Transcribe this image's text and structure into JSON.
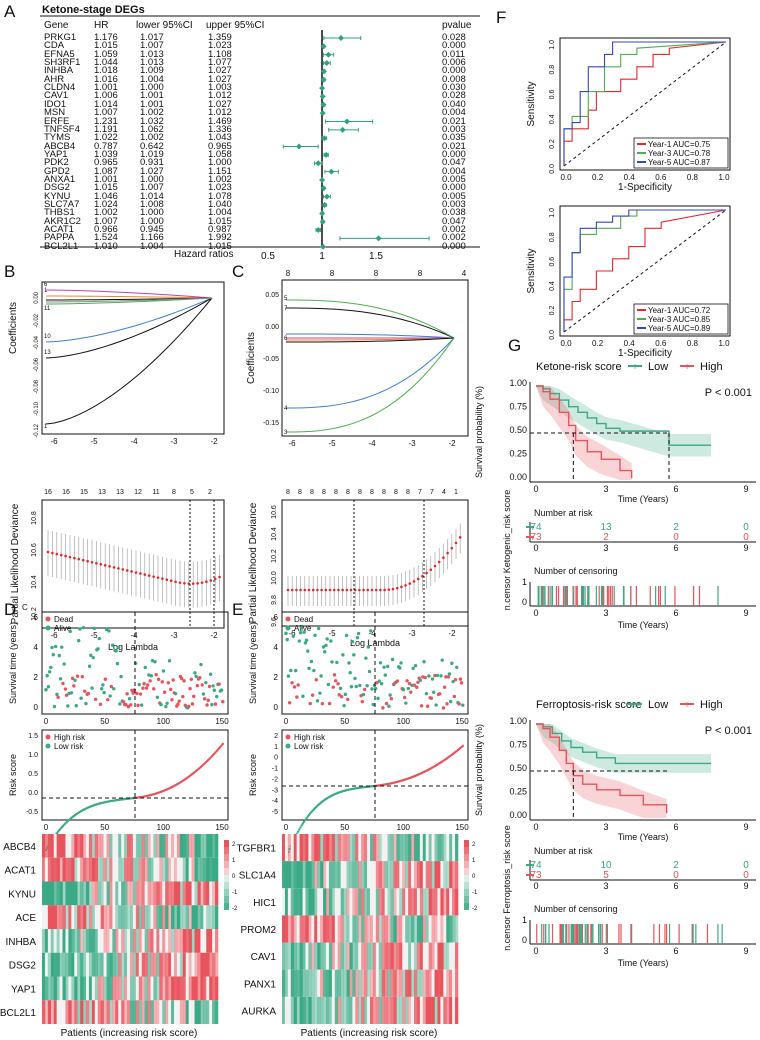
{
  "panels": {
    "A": "A",
    "B": "B",
    "C": "C",
    "D": "D",
    "E": "E",
    "F": "F",
    "G": "G"
  },
  "forest": {
    "title": "Ketone-stage DEGs",
    "headers": {
      "gene": "Gene",
      "hr": "HR",
      "lower": "lower 95%CI",
      "upper": "upper 95%CI",
      "pvalue": "pvalue"
    },
    "axis_label": "Hazard ratios",
    "ticks": [
      "0.5",
      "1",
      "1.5"
    ],
    "rows": [
      {
        "gene": "PRKG1",
        "hr": "1.176",
        "lower": "1.017",
        "upper": "1.359",
        "p": "0.028"
      },
      {
        "gene": "CDA",
        "hr": "1.015",
        "lower": "1.007",
        "upper": "1.023",
        "p": "0.000"
      },
      {
        "gene": "EFNA5",
        "hr": "1.059",
        "lower": "1.013",
        "upper": "1.108",
        "p": "0.011"
      },
      {
        "gene": "SH3RF1",
        "hr": "1.044",
        "lower": "1.013",
        "upper": "1.077",
        "p": "0.006"
      },
      {
        "gene": "INHBA",
        "hr": "1.018",
        "lower": "1.009",
        "upper": "1.027",
        "p": "0.000"
      },
      {
        "gene": "AHR",
        "hr": "1.016",
        "lower": "1.004",
        "upper": "1.027",
        "p": "0.008"
      },
      {
        "gene": "CLDN4",
        "hr": "1.001",
        "lower": "1.000",
        "upper": "1.003",
        "p": "0.030"
      },
      {
        "gene": "CAV1",
        "hr": "1.006",
        "lower": "1.001",
        "upper": "1.012",
        "p": "0.028"
      },
      {
        "gene": "IDO1",
        "hr": "1.014",
        "lower": "1.001",
        "upper": "1.027",
        "p": "0.040"
      },
      {
        "gene": "MSN",
        "hr": "1.007",
        "lower": "1.002",
        "upper": "1.012",
        "p": "0.004"
      },
      {
        "gene": "ERFE",
        "hr": "1.231",
        "lower": "1.032",
        "upper": "1.469",
        "p": "0.021"
      },
      {
        "gene": "TNFSF4",
        "hr": "1.191",
        "lower": "1.062",
        "upper": "1.336",
        "p": "0.003"
      },
      {
        "gene": "TYMS",
        "hr": "1.022",
        "lower": "1.002",
        "upper": "1.043",
        "p": "0.035"
      },
      {
        "gene": "ABCB4",
        "hr": "0.787",
        "lower": "0.642",
        "upper": "0.965",
        "p": "0.021"
      },
      {
        "gene": "YAP1",
        "hr": "1.039",
        "lower": "1.019",
        "upper": "1.058",
        "p": "0.000"
      },
      {
        "gene": "PDK2",
        "hr": "0.965",
        "lower": "0.931",
        "upper": "1.000",
        "p": "0.047"
      },
      {
        "gene": "GPD2",
        "hr": "1.087",
        "lower": "1.027",
        "upper": "1.151",
        "p": "0.004"
      },
      {
        "gene": "ANXA1",
        "hr": "1.001",
        "lower": "1.000",
        "upper": "1.002",
        "p": "0.005"
      },
      {
        "gene": "DSG2",
        "hr": "1.015",
        "lower": "1.007",
        "upper": "1.023",
        "p": "0.000"
      },
      {
        "gene": "KYNU",
        "hr": "1.046",
        "lower": "1.014",
        "upper": "1.078",
        "p": "0.005"
      },
      {
        "gene": "SLC7A7",
        "hr": "1.024",
        "lower": "1.008",
        "upper": "1.040",
        "p": "0.003"
      },
      {
        "gene": "THBS1",
        "hr": "1.002",
        "lower": "1.000",
        "upper": "1.004",
        "p": "0.038"
      },
      {
        "gene": "AKR1C2",
        "hr": "1.007",
        "lower": "1.000",
        "upper": "1.015",
        "p": "0.047"
      },
      {
        "gene": "ACAT1",
        "hr": "0.966",
        "lower": "0.945",
        "upper": "0.987",
        "p": "0.002"
      },
      {
        "gene": "PAPPA",
        "hr": "1.524",
        "lower": "1.166",
        "upper": "1.992",
        "p": "0.002"
      },
      {
        "gene": "BCL2L1",
        "hr": "1.010",
        "lower": "1.004",
        "upper": "1.015",
        "p": "0.000"
      }
    ]
  },
  "lasso": {
    "coef_label": "Coefficients",
    "pld_label": "Partial Likelihood Deviance",
    "loglambda_label": "Log Lambda",
    "B_coef_yticks": [
      "-0.12",
      "-0.10",
      "-0.08",
      "-0.06",
      "-0.04",
      "-0.02",
      "0.00"
    ],
    "B_pld_yticks": [
      "10.2",
      "10.4",
      "10.6",
      "10.8"
    ],
    "B_xticks": [
      "-6",
      "-5",
      "-4",
      "-3",
      "-2"
    ],
    "B_top_counts": [
      "16",
      "16",
      "15",
      "13",
      "13",
      "12",
      "11",
      "8",
      "5",
      "2"
    ],
    "B_coef_line_labels": [
      "6",
      "1",
      "11",
      "10",
      "13",
      "1"
    ],
    "C_coef_yticks": [
      "-0.15",
      "-0.10",
      "-0.05",
      "0.00",
      "0.05"
    ],
    "C_pld_yticks": [
      "9.6",
      "9.8",
      "10.0",
      "10.2",
      "10.4",
      "10.6"
    ],
    "C_xticks": [
      "-6",
      "-5",
      "-4",
      "-3",
      "-2"
    ],
    "C_top_counts_coef": [
      "8",
      "8",
      "8",
      "8",
      "4"
    ],
    "C_top_counts_pld": [
      "8",
      "8",
      "8",
      "8",
      "8",
      "8",
      "8",
      "8",
      "8",
      "8",
      "8",
      "7",
      "7",
      "4",
      "1"
    ],
    "C_coef_line_labels": [
      "5",
      "7",
      "6",
      "4",
      "3"
    ]
  },
  "riskD": {
    "surv_label": "Survival time (years)",
    "dead": "Dead",
    "alive": "Alive",
    "surv_yticks": [
      "0",
      "2",
      "4",
      "6"
    ],
    "xticks": [
      "0",
      "50",
      "100",
      "150"
    ],
    "risk_label": "Risk score",
    "high": "High risk",
    "low": "Low risk",
    "risk_yticks": [
      "-0.5",
      "0.0",
      "0.5",
      "1.0",
      "1.5"
    ],
    "genes": [
      "ABCB4",
      "ACAT1",
      "KYNU",
      "ACE",
      "INHBA",
      "DSG2",
      "YAP1",
      "BCL2L1"
    ],
    "legend": [
      "2",
      "1",
      "0",
      "-1",
      "-2"
    ],
    "xlabel": "Patients (increasing risk score)",
    "c_mark": "C"
  },
  "riskE": {
    "surv_label": "Survival time (years)",
    "dead": "Dead",
    "alive": "Alive",
    "surv_yticks": [
      "0",
      "2",
      "4",
      "6"
    ],
    "xticks": [
      "0",
      "50",
      "100",
      "150"
    ],
    "risk_label": "Risk score",
    "high": "High risk",
    "low": "Low risk",
    "risk_yticks": [
      "-5",
      "-4",
      "-3",
      "-2",
      "-1",
      "0",
      "1",
      "2"
    ],
    "genes": [
      "TGFBR1",
      "SLC1A4",
      "HIC1",
      "PROM2",
      "CAV1",
      "PANX1",
      "AURKA"
    ],
    "legend": [
      "2",
      "1",
      "0",
      "-1",
      "-2"
    ],
    "xlabel": "Patients (increasing risk score)"
  },
  "roc": {
    "ylabel": "Sensitivity",
    "xlabel": "1-Specificity",
    "yticks": [
      "0.0",
      "0.2",
      "0.4",
      "0.6",
      "0.8",
      "1.0"
    ],
    "xticks": [
      "0.0",
      "0.2",
      "0.4",
      "0.6",
      "0.8",
      "1.0"
    ],
    "top_legend": [
      "Year-1  AUC=0.75",
      "Year-3  AUC=0.78",
      "Year-5  AUC=0.87"
    ],
    "bottom_legend": [
      "Year-1  AUC=0.72",
      "Year-3  AUC=0.85",
      "Year-5  AUC=0.89"
    ],
    "colors": {
      "y1": "#e8262e",
      "y3": "#4caf50",
      "y5": "#3346c8"
    }
  },
  "km1": {
    "title": "Ketone-risk score",
    "low": "Low",
    "high": "High",
    "pval": "P < 0.001",
    "ylabel": "Survival probability (%)",
    "yticks": [
      "0.00",
      "0.25",
      "0.50",
      "0.75",
      "1.00"
    ],
    "xticks": [
      "0",
      "3",
      "6",
      "9"
    ],
    "xlabel": "Time (Years)",
    "nrisk_title": "Number at risk",
    "nrisk_low": [
      "74",
      "13",
      "2",
      "0"
    ],
    "nrisk_high": [
      "73",
      "2",
      "0",
      "0"
    ],
    "side_label": "n.censor Ketogenic_risk score",
    "ncens_title": "Number of censoring",
    "ncens_yticks": [
      "0",
      "1"
    ]
  },
  "km2": {
    "title": "Ferroptosis-risk score",
    "low": "Low",
    "high": "High",
    "pval": "P < 0.001",
    "ylabel": "Survival probability (%)",
    "yticks": [
      "0.00",
      "0.25",
      "0.50",
      "0.75",
      "1.00"
    ],
    "xticks": [
      "0",
      "3",
      "6",
      "9"
    ],
    "xlabel": "Time (Years)",
    "nrisk_title": "Number at risk",
    "nrisk_low": [
      "74",
      "10",
      "2",
      "0"
    ],
    "nrisk_high": [
      "73",
      "5",
      "0",
      "0"
    ],
    "side_label": "n.censor Ferroptosis_risk score",
    "ncens_title": "Number of censoring",
    "ncens_yticks": [
      "0",
      "1"
    ]
  },
  "colors": {
    "red": "#e8535c",
    "teal": "#3aa985",
    "forest_dot": "#2fa37f"
  }
}
